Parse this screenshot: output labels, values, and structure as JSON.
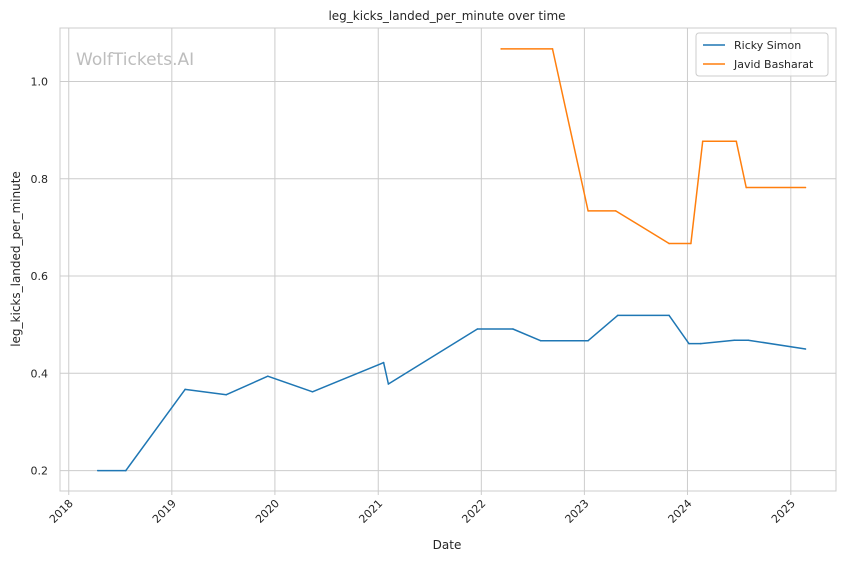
{
  "watermark": "WolfTickets.AI",
  "chart_data": {
    "type": "line",
    "title": "leg_kicks_landed_per_minute over time",
    "xlabel": "Date",
    "ylabel": "leg_kicks_landed_per_minute",
    "x_ticks": [
      "2018",
      "2019",
      "2020",
      "2021",
      "2022",
      "2023",
      "2024",
      "2025"
    ],
    "y_ticks": [
      "0.2",
      "0.4",
      "0.6",
      "0.8",
      "1.0"
    ],
    "xlim": [
      "2017-12-01",
      "2025-06-10"
    ],
    "ylim": [
      0.158,
      1.11
    ],
    "grid": true,
    "legend_position": "top-right",
    "series": [
      {
        "name": "Ricky Simon",
        "color": "#1f77b4",
        "points": [
          [
            "2018-04-14",
            0.2
          ],
          [
            "2018-07-22",
            0.2
          ],
          [
            "2019-02-17",
            0.367
          ],
          [
            "2019-07-13",
            0.356
          ],
          [
            "2019-12-07",
            0.394
          ],
          [
            "2020-05-13",
            0.362
          ],
          [
            "2021-01-20",
            0.422
          ],
          [
            "2021-02-06",
            0.378
          ],
          [
            "2021-12-18",
            0.491
          ],
          [
            "2022-04-23",
            0.491
          ],
          [
            "2022-07-30",
            0.467
          ],
          [
            "2023-01-14",
            0.467
          ],
          [
            "2023-04-29",
            0.519
          ],
          [
            "2023-10-28",
            0.519
          ],
          [
            "2024-01-06",
            0.461
          ],
          [
            "2024-02-17",
            0.461
          ],
          [
            "2024-06-15",
            0.468
          ],
          [
            "2024-08-03",
            0.468
          ],
          [
            "2025-02-22",
            0.45
          ]
        ]
      },
      {
        "name": "Javid Basharat",
        "color": "#ff7f0e",
        "points": [
          [
            "2022-03-12",
            1.067
          ],
          [
            "2022-09-10",
            1.067
          ],
          [
            "2023-01-14",
            0.734
          ],
          [
            "2023-04-22",
            0.734
          ],
          [
            "2023-10-28",
            0.667
          ],
          [
            "2024-01-13",
            0.667
          ],
          [
            "2024-02-24",
            0.877
          ],
          [
            "2024-06-22",
            0.877
          ],
          [
            "2024-07-27",
            0.782
          ],
          [
            "2025-02-22",
            0.782
          ]
        ]
      }
    ]
  }
}
